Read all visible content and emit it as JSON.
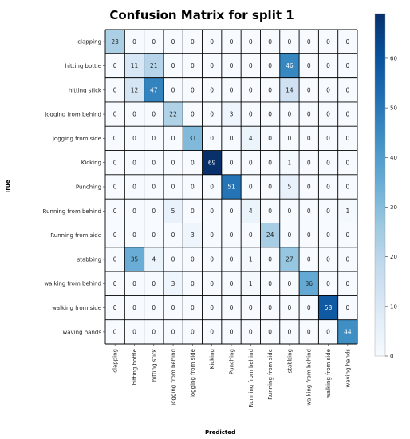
{
  "chart_data": {
    "type": "heatmap",
    "title": "Confusion Matrix for split 1",
    "xlabel": "Predicted",
    "ylabel": "True",
    "categories": [
      "clapping",
      "hitting bottle",
      "hitting stick",
      "jogging from behind",
      "jogging from side",
      "Kicking",
      "Punching",
      "Running from behind",
      "Running from side",
      "stabbing",
      "walking from behind",
      "walking from side",
      "waving hands"
    ],
    "matrix": [
      [
        23,
        0,
        0,
        0,
        0,
        0,
        0,
        0,
        0,
        0,
        0,
        0,
        0
      ],
      [
        0,
        11,
        21,
        0,
        0,
        0,
        0,
        0,
        0,
        46,
        0,
        0,
        0
      ],
      [
        0,
        12,
        47,
        0,
        0,
        0,
        0,
        0,
        0,
        14,
        0,
        0,
        0
      ],
      [
        0,
        0,
        0,
        22,
        0,
        0,
        3,
        0,
        0,
        0,
        0,
        0,
        0
      ],
      [
        0,
        0,
        0,
        0,
        31,
        0,
        0,
        4,
        0,
        0,
        0,
        0,
        0
      ],
      [
        0,
        0,
        0,
        0,
        0,
        69,
        0,
        0,
        0,
        1,
        0,
        0,
        0
      ],
      [
        0,
        0,
        0,
        0,
        0,
        0,
        51,
        0,
        0,
        5,
        0,
        0,
        0
      ],
      [
        0,
        0,
        0,
        5,
        0,
        0,
        0,
        4,
        0,
        0,
        0,
        0,
        1
      ],
      [
        0,
        0,
        0,
        0,
        3,
        0,
        0,
        0,
        24,
        0,
        0,
        0,
        0
      ],
      [
        0,
        35,
        4,
        0,
        0,
        0,
        0,
        1,
        0,
        27,
        0,
        0,
        0
      ],
      [
        0,
        0,
        0,
        3,
        0,
        0,
        0,
        1,
        0,
        0,
        36,
        0,
        0
      ],
      [
        0,
        0,
        0,
        0,
        0,
        0,
        0,
        0,
        0,
        0,
        0,
        58,
        0
      ],
      [
        0,
        0,
        0,
        0,
        0,
        0,
        0,
        0,
        0,
        0,
        0,
        0,
        44
      ]
    ],
    "colormap": "Blues",
    "colormap_colors": [
      "#f7fbff",
      "#deebf7",
      "#c6dbef",
      "#9ecae1",
      "#6baed6",
      "#4292c6",
      "#2171b5",
      "#08519c",
      "#08306b"
    ],
    "vmin": 0,
    "vmax": 69,
    "colorbar_ticks": [
      0,
      10,
      20,
      30,
      40,
      50,
      60
    ],
    "colorbar_position": "right",
    "grid": true,
    "grid_color": "#000000"
  }
}
